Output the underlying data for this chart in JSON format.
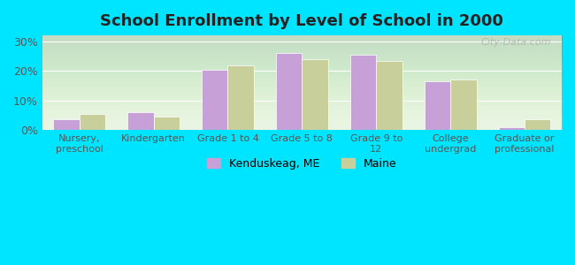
{
  "title": "School Enrollment by Level of School in 2000",
  "categories": [
    "Nursery,\npreschool",
    "Kindergarten",
    "Grade 1 to 4",
    "Grade 5 to 8",
    "Grade 9 to\n12",
    "College\nundergrad",
    "Graduate or\nprofessional"
  ],
  "kenduskeag": [
    3.5,
    6.0,
    20.5,
    26.0,
    25.5,
    16.5,
    1.0
  ],
  "maine": [
    5.5,
    4.5,
    22.0,
    24.0,
    23.5,
    17.0,
    3.5
  ],
  "kenduskeag_color": "#c8a0d8",
  "maine_color": "#c8cf9a",
  "background_outer": "#00e5ff",
  "background_inner": "#e8f5e0",
  "yticks": [
    0,
    10,
    20,
    30
  ],
  "ylim": [
    0,
    32
  ],
  "legend_labels": [
    "Kenduskeag, ME",
    "Maine"
  ],
  "watermark": "City-Data.com"
}
